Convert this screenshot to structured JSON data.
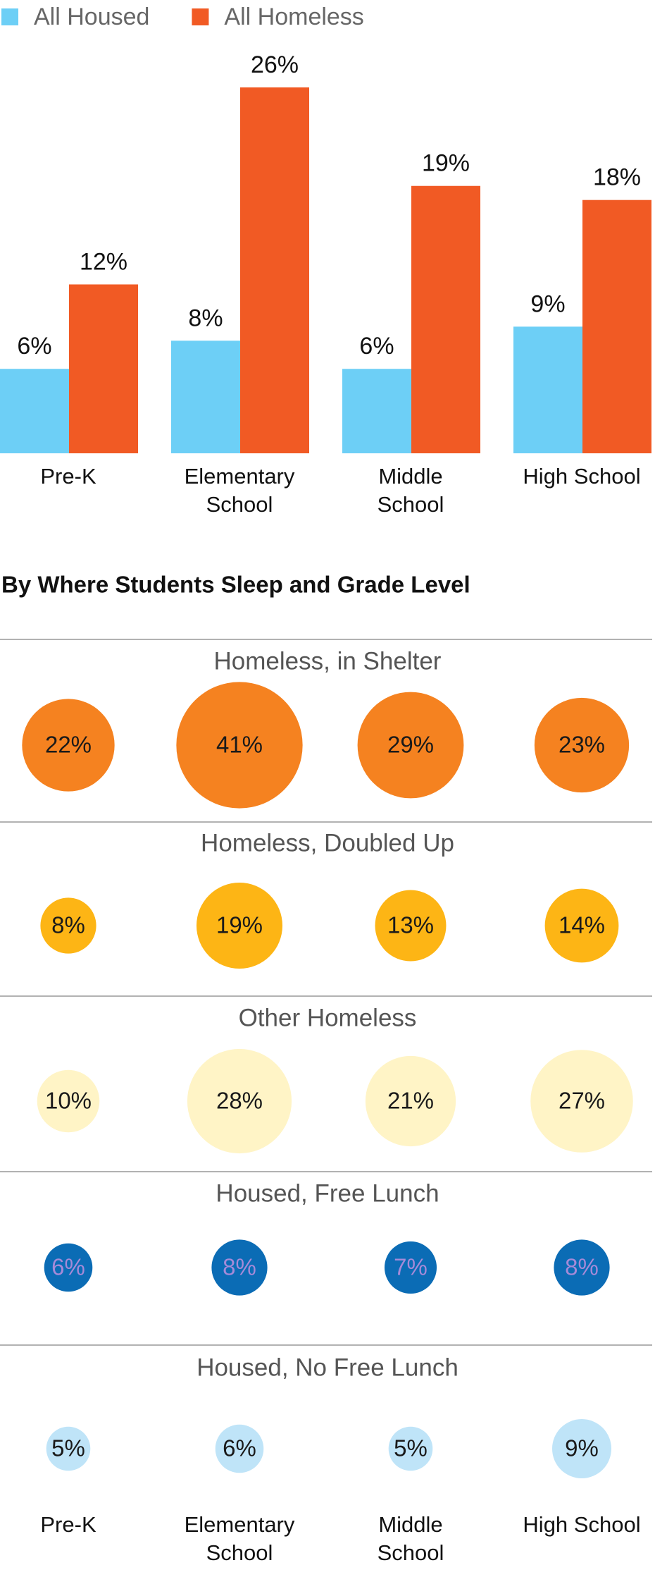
{
  "chart_data": [
    {
      "type": "bar",
      "categories": [
        "Pre-K",
        "Elementary School",
        "Middle School",
        "High School"
      ],
      "legend": "top-left",
      "series": [
        {
          "name": "All Housed",
          "color": "#6dcff6",
          "values": [
            6,
            8,
            6,
            9
          ],
          "value_labels": [
            "6%",
            "8%",
            "6%",
            "9%"
          ]
        },
        {
          "name": "All Homeless",
          "color": "#f15a24",
          "values": [
            12,
            26,
            19,
            18
          ],
          "value_labels": [
            "12%",
            "26%",
            "19%",
            "18%"
          ]
        }
      ]
    },
    {
      "type": "bubble",
      "title": "By Where Students Sleep and Grade Level",
      "categories": [
        "Pre-K",
        "Elementary School",
        "Middle School",
        "High School"
      ],
      "series": [
        {
          "name": "Homeless, in Shelter",
          "color": "#f58220",
          "label_color": "#1a1a1a",
          "values": [
            22,
            41,
            29,
            23
          ],
          "value_labels": [
            "22%",
            "41%",
            "29%",
            "23%"
          ]
        },
        {
          "name": "Homeless, Doubled Up",
          "color": "#fdb515",
          "label_color": "#1a1a1a",
          "values": [
            8,
            19,
            13,
            14
          ],
          "value_labels": [
            "8%",
            "19%",
            "13%",
            "14%"
          ]
        },
        {
          "name": "Other Homeless",
          "color": "#fff4c6",
          "label_color": "#1a1a1a",
          "values": [
            10,
            28,
            21,
            27
          ],
          "value_labels": [
            "10%",
            "28%",
            "21%",
            "27%"
          ]
        },
        {
          "name": "Housed, Free Lunch",
          "color": "#0b6cb5",
          "label_color": "#a58ad8",
          "values": [
            6,
            8,
            7,
            8
          ],
          "value_labels": [
            "6%",
            "8%",
            "7%",
            "8%"
          ]
        },
        {
          "name": "Housed, No Free Lunch",
          "color": "#bfe4f8",
          "label_color": "#1a1a1a",
          "values": [
            5,
            6,
            5,
            9
          ],
          "value_labels": [
            "5%",
            "6%",
            "5%",
            "9%"
          ]
        }
      ]
    }
  ]
}
